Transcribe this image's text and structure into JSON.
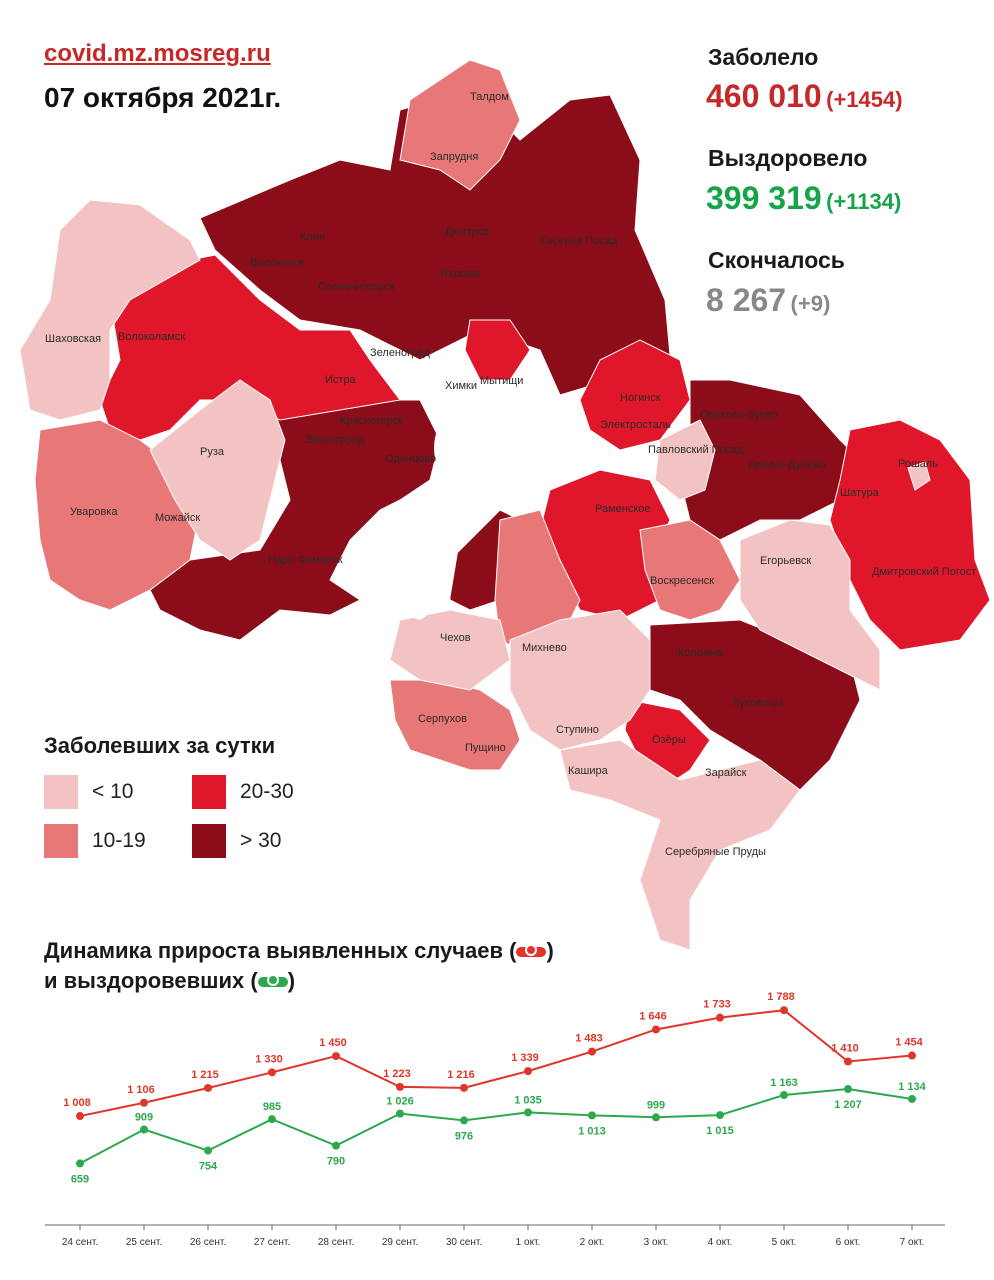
{
  "header": {
    "site": "covid.mz.mosreg.ru",
    "date": "07 октября 2021г."
  },
  "stats": {
    "cases": {
      "label": "Заболело",
      "value": "460 010",
      "delta": "(+1454)",
      "color": "#c62828"
    },
    "recovered": {
      "label": "Выздоровело",
      "value": "399 319",
      "delta": "(+1134)",
      "color": "#16a34a"
    },
    "deaths": {
      "label": "Скончалось",
      "value": "8 267",
      "delta": "(+9)",
      "color": "#888888"
    }
  },
  "legend": {
    "title": "Заболевших за сутки",
    "items": [
      {
        "label": "< 10",
        "color": "#f3c3c3"
      },
      {
        "label": "20-30",
        "color": "#e0162b"
      },
      {
        "label": "10-19",
        "color": "#e87878"
      },
      {
        "label": "> 30",
        "color": "#8b0d1a"
      }
    ]
  },
  "map": {
    "labels": [
      "Талдом",
      "Запрудня",
      "Клин",
      "Дмитров",
      "Сергиев Посад",
      "Высоковск",
      "Яхрома",
      "Солнечногорск",
      "Волоколамск",
      "Шаховская",
      "Зеленоград",
      "Истра",
      "Мытищи",
      "Ногинск",
      "Электросталь",
      "Орехово-Зуево",
      "Павловский Посад",
      "Ликино-Дулёво",
      "Рошаль",
      "Красногорск",
      "Звенигород",
      "Одинцово",
      "Руза",
      "Уваровка",
      "Можайск",
      "Наро-Фоминск",
      "Раменское",
      "Шатура",
      "Егорьевск",
      "Дмитровский Погост",
      "Воскресенск",
      "Чехов",
      "Михнево",
      "Коломна",
      "Луховицы",
      "Серпухов",
      "Пущино",
      "Ступино",
      "Озёры",
      "Кашира",
      "Зарайск",
      "Серебряные Пруды",
      "Химки"
    ]
  },
  "dynamics": {
    "title_line1": "Динамика прироста выявленных случаев (",
    "title_line1_end": ")",
    "title_line2": "и выздоровевших (",
    "title_line2_end": ")"
  },
  "chart_data": {
    "type": "line",
    "categories": [
      "24 сент.",
      "25 сент.",
      "26 сент.",
      "27 сент.",
      "28 сент.",
      "29 сент.",
      "30 сент.",
      "1 окт.",
      "2 окт.",
      "3 окт.",
      "4 окт.",
      "5 окт.",
      "6 окт.",
      "7 окт."
    ],
    "series": [
      {
        "color": "#e0352b",
        "values": [
          1008,
          1106,
          1215,
          1330,
          1450,
          1223,
          1216,
          1339,
          1483,
          1646,
          1733,
          1788,
          1410,
          1454
        ],
        "labels": [
          "1 008",
          "1 106",
          "1 215",
          "1 330",
          "1 450",
          "1 223",
          "1 216",
          "1 339",
          "1 483",
          "1 646",
          "1 733",
          "1 788",
          "1 410",
          "1 454"
        ]
      },
      {
        "color": "#2ea84e",
        "values": [
          659,
          909,
          754,
          985,
          790,
          1026,
          976,
          1035,
          1013,
          999,
          1015,
          1163,
          1207,
          1134
        ],
        "labels": [
          "659",
          "909",
          "754",
          "985",
          "790",
          "1 026",
          "976",
          "1 035",
          "1 013",
          "999",
          "1 015",
          "1 163",
          "1 207",
          "1 134"
        ]
      }
    ],
    "ylim": [
      500,
      1900
    ],
    "grid": false
  }
}
